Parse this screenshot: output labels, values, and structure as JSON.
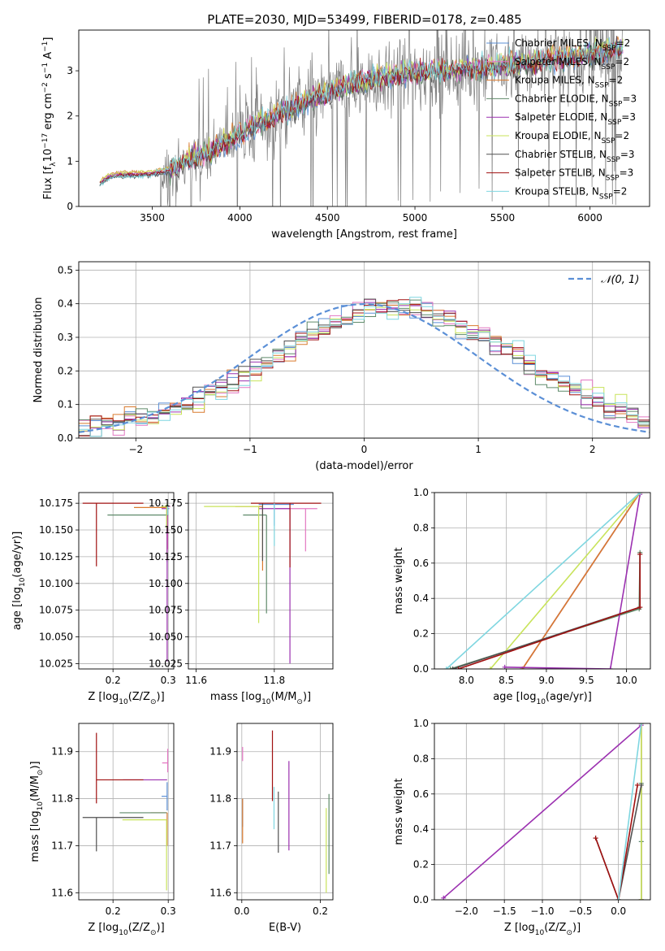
{
  "figure_title": "PLATE=2030, MJD=53499, FIBERID=0178, z=0.485",
  "colors": {
    "Chabrier MILES": "#5b8fd6",
    "Salpeter MILES": "#e377c2",
    "Kroupa MILES": "#d97a2e",
    "Chabrier ELODIE": "#5f8a6a",
    "Salpeter ELODIE": "#9b30b0",
    "Kroupa ELODIE": "#c8e35a",
    "Chabrier STELIB": "#505050",
    "Salpeter STELIB": "#a01010",
    "Kroupa STELIB": "#7fd6e0",
    "observed": "#7f7f7f",
    "gaussian": "#5b8fd6"
  },
  "legend_top": [
    {
      "model": "Chabrier MILES",
      "label": "Chabrier MILES, N",
      "sub": "SSP",
      "tail": "=2"
    },
    {
      "model": "Salpeter MILES",
      "label": "Salpeter MILES, N",
      "sub": "SSP",
      "tail": "=2"
    },
    {
      "model": "Kroupa MILES",
      "label": "Kroupa MILES, N",
      "sub": "SSP",
      "tail": "=2"
    },
    {
      "model": "Chabrier ELODIE",
      "label": "Chabrier ELODIE, N",
      "sub": "SSP",
      "tail": "=3"
    },
    {
      "model": "Salpeter ELODIE",
      "label": "Salpeter ELODIE, N",
      "sub": "SSP",
      "tail": "=3"
    },
    {
      "model": "Kroupa ELODIE",
      "label": "Kroupa ELODIE, N",
      "sub": "SSP",
      "tail": "=2"
    },
    {
      "model": "Chabrier STELIB",
      "label": "Chabrier STELIB, N",
      "sub": "SSP",
      "tail": "=3"
    },
    {
      "model": "Salpeter STELIB",
      "label": "Salpeter STELIB, N",
      "sub": "SSP",
      "tail": "=3"
    },
    {
      "model": "Kroupa STELIB",
      "label": "Kroupa STELIB, N",
      "sub": "SSP",
      "tail": "=2"
    }
  ],
  "chart_data": [
    {
      "id": "spectrum",
      "type": "line",
      "xlabel": "wavelength [Angstrom, rest frame]",
      "ylabel": "Flux [f",
      "ylabel_sub": "λ",
      "ylabel_tail": "10",
      "ylabel_sup": "−17",
      "ylabel_tail2": " erg cm",
      "ylabel_sup2": "−2",
      "ylabel_tail3": " s",
      "ylabel_sup3": "−1",
      "ylabel_tail4": " A",
      "ylabel_sup4": "−1",
      "ylabel_end": "]",
      "xlim": [
        3080,
        6340
      ],
      "ylim": [
        0,
        3.9
      ],
      "xticks": [
        3500,
        4000,
        4500,
        5000,
        5500,
        6000
      ],
      "yticks": [
        0,
        1,
        2,
        3
      ],
      "grid": false,
      "x_range_data": [
        3200,
        6190
      ],
      "continuum_anchors_x": [
        3200,
        3250,
        3300,
        3400,
        3500,
        3600,
        3700,
        3800,
        3900,
        4000,
        4200,
        4400,
        4600,
        4800,
        5000,
        5200,
        5400,
        5600,
        5800,
        6000,
        6190
      ],
      "continuum_anchors_y": [
        0.5,
        0.65,
        0.7,
        0.7,
        0.72,
        0.8,
        1.0,
        1.15,
        1.35,
        1.6,
        2.0,
        2.35,
        2.65,
        2.85,
        2.95,
        3.0,
        3.05,
        3.15,
        3.25,
        3.35,
        3.5
      ]
    },
    {
      "id": "residuals",
      "type": "histogram",
      "xlabel": "(data-model)/error",
      "ylabel": "Normed distribution",
      "xlim": [
        -2.5,
        2.5
      ],
      "ylim": [
        0,
        0.525
      ],
      "xticks": [
        -2,
        -1,
        0,
        1,
        2
      ],
      "yticks": [
        0.0,
        0.1,
        0.2,
        0.3,
        0.4,
        0.5
      ],
      "grid": true,
      "legend": "$\\mathcal{N}(0,1)$",
      "legend_text": "𝒩(0, 1)",
      "legend_loc": "top-right",
      "bin_width": 0.1
    },
    {
      "id": "age_vs_Z",
      "type": "errorbar",
      "xlabel": "Z [log",
      "xlabel_sub": "10",
      "xlabel_tail": "(Z/Z",
      "xlabel_sub2": "⊙",
      "xlabel_end": ")]",
      "ylabel": "age  [log",
      "ylabel_sub": "10",
      "ylabel_tail": "(age/yr)]",
      "xlim": [
        0.138,
        0.31
      ],
      "ylim": [
        10.02,
        10.185
      ],
      "xticks": [
        0.2,
        0.3
      ],
      "yticks": [
        10.025,
        10.05,
        10.075,
        10.1,
        10.125,
        10.15,
        10.175
      ],
      "grid": true,
      "points": [
        {
          "model": "Chabrier MILES",
          "x": 0.298,
          "y": 10.17,
          "xerr": [
            0.0,
            0.004
          ],
          "yerr": [
            0.05,
            0.002
          ]
        },
        {
          "model": "Salpeter MILES",
          "x": 0.299,
          "y": 10.172,
          "xerr": [
            0.0,
            0.005
          ],
          "yerr": [
            0.04,
            0.002
          ]
        },
        {
          "model": "Kroupa MILES",
          "x": 0.298,
          "y": 10.171,
          "xerr": [
            0.06,
            0.0
          ],
          "yerr": [
            0.05,
            0.002
          ]
        },
        {
          "model": "Chabrier ELODIE",
          "x": 0.25,
          "y": 10.164,
          "xerr": [
            0.06,
            0.05
          ],
          "yerr": [
            0.0,
            0.0
          ]
        },
        {
          "model": "Salpeter ELODIE",
          "x": 0.298,
          "y": 10.17,
          "xerr": [
            0.01,
            0.0
          ],
          "yerr": [
            0.143,
            0.002
          ]
        },
        {
          "model": "Kroupa ELODIE",
          "x": 0.297,
          "y": 10.172,
          "xerr": [
            0.01,
            0.0
          ],
          "yerr": [
            0.02,
            0.002
          ]
        },
        {
          "model": "Chabrier STELIB",
          "x": 0.17,
          "y": 10.175,
          "xerr": [
            0.0,
            0.0
          ],
          "yerr": [
            0.0,
            0.0
          ]
        },
        {
          "model": "Salpeter STELIB",
          "x": 0.17,
          "y": 10.175,
          "xerr": [
            0.025,
            0.085
          ],
          "yerr": [
            0.059,
            0.0
          ]
        },
        {
          "model": "Kroupa STELIB",
          "x": 0.299,
          "y": 10.174,
          "xerr": [
            0.0,
            0.0
          ],
          "yerr": [
            0.01,
            0.0
          ]
        }
      ]
    },
    {
      "id": "age_vs_mass",
      "type": "errorbar",
      "xlabel": "mass [log",
      "xlabel_sub": "10",
      "xlabel_tail": "(M/M",
      "xlabel_sub2": "⊙",
      "xlabel_end": ")]",
      "xlim": [
        11.58,
        11.95
      ],
      "ylim": [
        10.02,
        10.185
      ],
      "xticks": [
        11.6,
        11.8
      ],
      "yticks": [
        10.025,
        10.05,
        10.075,
        10.1,
        10.125,
        10.15,
        10.175
      ],
      "grid": true,
      "points": [
        {
          "model": "Chabrier MILES",
          "x": 11.8,
          "y": 10.174,
          "xerr": [
            0.04,
            0.05
          ],
          "yerr": [
            0.02,
            0.0
          ]
        },
        {
          "model": "Salpeter MILES",
          "x": 11.88,
          "y": 10.17,
          "xerr": [
            0.08,
            0.03
          ],
          "yerr": [
            0.04,
            0.0
          ]
        },
        {
          "model": "Kroupa MILES",
          "x": 11.77,
          "y": 10.172,
          "xerr": [
            0.07,
            0.0
          ],
          "yerr": [
            0.06,
            0.0
          ]
        },
        {
          "model": "Chabrier ELODIE",
          "x": 11.78,
          "y": 10.164,
          "xerr": [
            0.06,
            0.0
          ],
          "yerr": [
            0.092,
            0.0
          ]
        },
        {
          "model": "Salpeter ELODIE",
          "x": 11.84,
          "y": 10.17,
          "xerr": [
            0.08,
            0.0
          ],
          "yerr": [
            0.145,
            0.0
          ]
        },
        {
          "model": "Kroupa ELODIE",
          "x": 11.76,
          "y": 10.172,
          "xerr": [
            0.14,
            0.0
          ],
          "yerr": [
            0.109,
            0.0
          ]
        },
        {
          "model": "Chabrier STELIB",
          "x": 11.77,
          "y": 10.175,
          "xerr": [
            0.0,
            0.0
          ],
          "yerr": [
            0.054,
            0.0
          ]
        },
        {
          "model": "Salpeter STELIB",
          "x": 11.84,
          "y": 10.175,
          "xerr": [
            0.1,
            0.08
          ],
          "yerr": [
            0.06,
            0.0
          ]
        },
        {
          "model": "Kroupa STELIB",
          "x": 11.8,
          "y": 10.175,
          "xerr": [
            0.0,
            0.0
          ],
          "yerr": [
            0.04,
            0.0
          ]
        }
      ]
    },
    {
      "id": "weight_vs_age",
      "type": "line",
      "xlabel": "age  [log",
      "xlabel_sub": "10",
      "xlabel_tail": "(age/yr)]",
      "ylabel": "mass weight",
      "xlim": [
        7.6,
        10.3
      ],
      "ylim": [
        0,
        1.0
      ],
      "xticks": [
        8.0,
        8.5,
        9.0,
        9.5,
        10.0
      ],
      "yticks": [
        0.0,
        0.2,
        0.4,
        0.6,
        0.8,
        1.0
      ],
      "grid": true,
      "series": [
        {
          "model": "Chabrier MILES",
          "x": [
            8.7,
            10.17
          ],
          "y": [
            0.0,
            1.0
          ]
        },
        {
          "model": "Salpeter MILES",
          "x": [
            8.7,
            10.17
          ],
          "y": [
            0.0,
            1.0
          ]
        },
        {
          "model": "Kroupa MILES",
          "x": [
            8.7,
            10.17
          ],
          "y": [
            0.0,
            1.0
          ]
        },
        {
          "model": "Chabrier ELODIE",
          "x": [
            7.8,
            10.16,
            10.17
          ],
          "y": [
            0.0,
            0.34,
            0.66
          ]
        },
        {
          "model": "Salpeter ELODIE",
          "x": [
            8.48,
            9.8,
            10.17
          ],
          "y": [
            0.01,
            0.0,
            0.99
          ]
        },
        {
          "model": "Kroupa ELODIE",
          "x": [
            8.3,
            10.17
          ],
          "y": [
            0.0,
            1.0
          ]
        },
        {
          "model": "Chabrier STELIB",
          "x": [
            7.83,
            10.17,
            10.17
          ],
          "y": [
            0.0,
            0.35,
            0.65
          ]
        },
        {
          "model": "Salpeter STELIB",
          "x": [
            7.9,
            10.17,
            10.17
          ],
          "y": [
            0.0,
            0.35,
            0.65
          ]
        },
        {
          "model": "Kroupa STELIB",
          "x": [
            7.75,
            10.17
          ],
          "y": [
            0.0,
            1.0
          ]
        }
      ]
    },
    {
      "id": "mass_vs_Z",
      "type": "errorbar",
      "xlabel": "Z [log",
      "xlabel_sub": "10",
      "xlabel_tail": "(Z/Z",
      "xlabel_sub2": "⊙",
      "xlabel_end": ")]",
      "ylabel": "mass [log",
      "ylabel_sub": "10",
      "ylabel_tail": "(M/M",
      "ylabel_sub2": "⊙",
      "ylabel_end": ")]",
      "xlim": [
        0.138,
        0.31
      ],
      "ylim": [
        11.585,
        11.96
      ],
      "xticks": [
        0.2,
        0.3
      ],
      "yticks": [
        11.6,
        11.7,
        11.8,
        11.9
      ],
      "grid": true,
      "points": [
        {
          "model": "Chabrier MILES",
          "x": 0.298,
          "y": 11.805,
          "xerr": [
            0.01,
            0.0
          ],
          "yerr": [
            0.03,
            0.03
          ]
        },
        {
          "model": "Salpeter MILES",
          "x": 0.299,
          "y": 11.876,
          "xerr": [
            0.01,
            0.0
          ],
          "yerr": [
            0.02,
            0.03
          ]
        },
        {
          "model": "Kroupa MILES",
          "x": 0.298,
          "y": 11.77,
          "xerr": [
            0.03,
            0.0
          ],
          "yerr": [
            0.07,
            0.0
          ]
        },
        {
          "model": "Chabrier ELODIE",
          "x": 0.262,
          "y": 11.77,
          "xerr": [
            0.05,
            0.035
          ],
          "yerr": [
            0.0,
            0.0
          ]
        },
        {
          "model": "Salpeter ELODIE",
          "x": 0.298,
          "y": 11.84,
          "xerr": [
            0.08,
            0.0
          ],
          "yerr": [
            0.0,
            0.0
          ]
        },
        {
          "model": "Kroupa ELODIE",
          "x": 0.297,
          "y": 11.755,
          "xerr": [
            0.08,
            0.0
          ],
          "yerr": [
            0.15,
            0.0
          ]
        },
        {
          "model": "Chabrier STELIB",
          "x": 0.17,
          "y": 11.76,
          "xerr": [
            0.025,
            0.085
          ],
          "yerr": [
            0.072,
            0.0
          ]
        },
        {
          "model": "Salpeter STELIB",
          "x": 0.17,
          "y": 11.84,
          "xerr": [
            0.0,
            0.085
          ],
          "yerr": [
            0.05,
            0.1
          ]
        },
        {
          "model": "Kroupa STELIB",
          "x": 0.3,
          "y": 11.8,
          "xerr": [
            0.0,
            0.0
          ],
          "yerr": [
            0.0,
            0.0
          ]
        }
      ]
    },
    {
      "id": "mass_vs_ebv",
      "type": "errorbar",
      "xlabel": "E(B-V)",
      "xlim": [
        -0.012,
        0.232
      ],
      "ylim": [
        11.585,
        11.96
      ],
      "xticks": [
        0.0,
        0.2
      ],
      "yticks": [
        11.6,
        11.7,
        11.8,
        11.9
      ],
      "grid": true,
      "points": [
        {
          "model": "Chabrier MILES",
          "x": 0.002,
          "y": 11.8,
          "yerr": [
            0.06,
            0.0
          ]
        },
        {
          "model": "Salpeter MILES",
          "x": 0.002,
          "y": 11.88,
          "yerr": [
            0.0,
            0.03
          ]
        },
        {
          "model": "Kroupa MILES",
          "x": 0.002,
          "y": 11.76,
          "yerr": [
            0.055,
            0.04
          ]
        },
        {
          "model": "Chabrier ELODIE",
          "x": 0.222,
          "y": 11.72,
          "yerr": [
            0.08,
            0.09
          ]
        },
        {
          "model": "Salpeter ELODIE",
          "x": 0.12,
          "y": 11.79,
          "yerr": [
            0.1,
            0.09
          ]
        },
        {
          "model": "Kroupa ELODIE",
          "x": 0.215,
          "y": 11.69,
          "yerr": [
            0.09,
            0.09
          ]
        },
        {
          "model": "Chabrier STELIB",
          "x": 0.093,
          "y": 11.75,
          "yerr": [
            0.065,
            0.065
          ]
        },
        {
          "model": "Salpeter STELIB",
          "x": 0.078,
          "y": 11.87,
          "yerr": [
            0.075,
            0.075
          ]
        },
        {
          "model": "Kroupa STELIB",
          "x": 0.082,
          "y": 11.78,
          "yerr": [
            0.045,
            0.045
          ]
        }
      ]
    },
    {
      "id": "weight_vs_Z",
      "type": "line",
      "xlabel": "Z [log",
      "xlabel_sub": "10",
      "xlabel_tail": "(Z/Z",
      "xlabel_sub2": "⊙",
      "xlabel_end": ")]",
      "ylabel": "mass weight",
      "xlim": [
        -2.42,
        0.42
      ],
      "ylim": [
        0,
        1.0
      ],
      "xticks": [
        -2.0,
        -1.5,
        -1.0,
        -0.5,
        0.0
      ],
      "yticks": [
        0.0,
        0.2,
        0.4,
        0.6,
        0.8,
        1.0
      ],
      "grid": true,
      "series": [
        {
          "model": "Chabrier MILES",
          "x": [
            0.3,
            0.3
          ],
          "y": [
            0.0,
            1.0
          ]
        },
        {
          "model": "Salpeter MILES",
          "x": [
            0.3,
            0.3
          ],
          "y": [
            0.0,
            1.0
          ]
        },
        {
          "model": "Kroupa MILES",
          "x": [
            0.3,
            0.3
          ],
          "y": [
            0.0,
            1.0
          ]
        },
        {
          "model": "Chabrier ELODIE",
          "x": [
            0.3,
            0.3,
            0.3
          ],
          "y": [
            0.0,
            0.33,
            0.66
          ]
        },
        {
          "model": "Salpeter ELODIE",
          "x": [
            -2.3,
            0.3
          ],
          "y": [
            0.01,
            0.99
          ]
        },
        {
          "model": "Kroupa ELODIE",
          "x": [
            0.3,
            0.3
          ],
          "y": [
            0.0,
            1.0
          ]
        },
        {
          "model": "Chabrier STELIB",
          "x": [
            -0.3,
            0.0,
            0.3
          ],
          "y": [
            0.35,
            0.0,
            0.65
          ]
        },
        {
          "model": "Salpeter STELIB",
          "x": [
            -0.3,
            0.0,
            0.25
          ],
          "y": [
            0.35,
            0.0,
            0.65
          ]
        },
        {
          "model": "Kroupa STELIB",
          "x": [
            0.0,
            0.3
          ],
          "y": [
            0.0,
            1.0
          ]
        }
      ]
    }
  ]
}
